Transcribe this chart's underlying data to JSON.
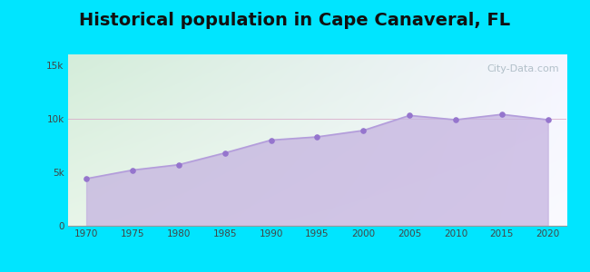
{
  "title": "Historical population in Cape Canaveral, FL",
  "years": [
    1970,
    1975,
    1980,
    1985,
    1990,
    1995,
    2000,
    2005,
    2010,
    2015,
    2020
  ],
  "population": [
    4400,
    5200,
    5700,
    6800,
    8000,
    8300,
    8900,
    10300,
    9900,
    10400,
    9900
  ],
  "line_color": "#b39ddb",
  "fill_color": "#c5b3e0",
  "marker_color": "#9575cd",
  "background_outer": "#00e5ff",
  "background_grad_top_left": "#d4edda",
  "background_grad_top_right": "#f0f0f8",
  "background_grad_bottom": "#f0e8f8",
  "title_fontsize": 14,
  "ytick_labels": [
    "0",
    "5k",
    "10k",
    "15k"
  ],
  "ytick_values": [
    0,
    5000,
    10000,
    15000
  ],
  "xlim": [
    1968,
    2022
  ],
  "ylim": [
    0,
    16000
  ],
  "watermark": "City-Data.com"
}
